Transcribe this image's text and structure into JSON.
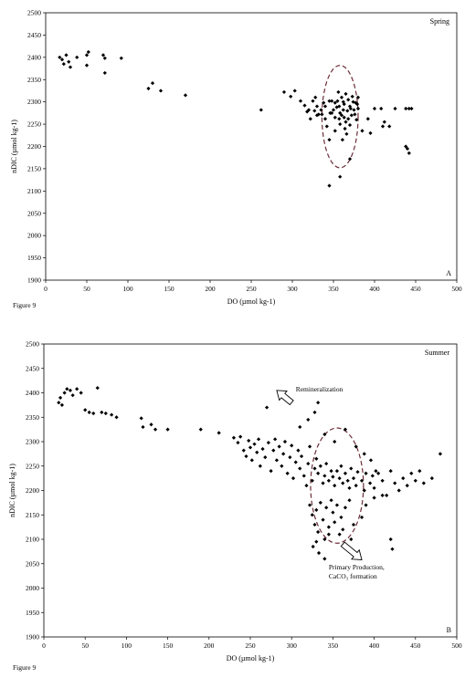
{
  "figure_label": "Figure 9",
  "chart_data": [
    {
      "type": "scatter",
      "panel_label": "A",
      "season_label": "Spring",
      "xlabel": "DO (µmol kg-1)",
      "ylabel": "nDIC (µmol kg-1)",
      "xlim": [
        0,
        500
      ],
      "ylim": [
        1900,
        2500
      ],
      "xticks": [
        "0",
        "50",
        "100",
        "150",
        "200",
        "250",
        "300",
        "350",
        "400",
        "450",
        "500"
      ],
      "yticks": [
        "1900",
        "1950",
        "2000",
        "2050",
        "2100",
        "2150",
        "2200",
        "2250",
        "2300",
        "2350",
        "2400",
        "2450",
        "2500"
      ],
      "grid": false,
      "marker": "diamond",
      "points": [
        [
          17,
          2400
        ],
        [
          20,
          2395
        ],
        [
          22,
          2385
        ],
        [
          25,
          2405
        ],
        [
          28,
          2390
        ],
        [
          30,
          2378
        ],
        [
          38,
          2400
        ],
        [
          50,
          2405
        ],
        [
          52,
          2412
        ],
        [
          50,
          2382
        ],
        [
          70,
          2405
        ],
        [
          72,
          2398
        ],
        [
          72,
          2365
        ],
        [
          92,
          2398
        ],
        [
          125,
          2330
        ],
        [
          130,
          2342
        ],
        [
          140,
          2325
        ],
        [
          170,
          2315
        ],
        [
          262,
          2282
        ],
        [
          290,
          2322
        ],
        [
          298,
          2312
        ],
        [
          303,
          2325
        ],
        [
          310,
          2302
        ],
        [
          315,
          2292
        ],
        [
          318,
          2278
        ],
        [
          320,
          2282
        ],
        [
          322,
          2262
        ],
        [
          325,
          2302
        ],
        [
          328,
          2310
        ],
        [
          330,
          2290
        ],
        [
          332,
          2272
        ],
        [
          335,
          2282
        ],
        [
          338,
          2298
        ],
        [
          340,
          2262
        ],
        [
          342,
          2245
        ],
        [
          345,
          2302
        ],
        [
          348,
          2275
        ],
        [
          350,
          2282
        ],
        [
          352,
          2265
        ],
        [
          355,
          2302
        ],
        [
          357,
          2290
        ],
        [
          358,
          2250
        ],
        [
          360,
          2270
        ],
        [
          360,
          2310
        ],
        [
          362,
          2282
        ],
        [
          363,
          2295
        ],
        [
          365,
          2255
        ],
        [
          365,
          2318
        ],
        [
          367,
          2280
        ],
        [
          368,
          2305
        ],
        [
          370,
          2290
        ],
        [
          372,
          2270
        ],
        [
          373,
          2312
        ],
        [
          375,
          2282
        ],
        [
          377,
          2298
        ],
        [
          378,
          2260
        ],
        [
          380,
          2285
        ],
        [
          380,
          2310
        ],
        [
          356,
          2322
        ],
        [
          364,
          2240
        ],
        [
          366,
          2228
        ],
        [
          361,
          2215
        ],
        [
          352,
          2235
        ],
        [
          345,
          2215
        ],
        [
          358,
          2275
        ],
        [
          354,
          2288
        ],
        [
          362,
          2300
        ],
        [
          368,
          2262
        ],
        [
          370,
          2248
        ],
        [
          374,
          2300
        ],
        [
          376,
          2272
        ],
        [
          340,
          2290
        ],
        [
          336,
          2272
        ],
        [
          330,
          2270
        ],
        [
          327,
          2280
        ],
        [
          348,
          2302
        ],
        [
          352,
          2298
        ],
        [
          346,
          2275
        ],
        [
          357,
          2262
        ],
        [
          363,
          2265
        ],
        [
          371,
          2285
        ],
        [
          379,
          2295
        ],
        [
          345,
          2112
        ],
        [
          358,
          2132
        ],
        [
          370,
          2172
        ],
        [
          385,
          2235
        ],
        [
          392,
          2262
        ],
        [
          400,
          2285
        ],
        [
          408,
          2285
        ],
        [
          412,
          2255
        ],
        [
          418,
          2245
        ],
        [
          425,
          2285
        ],
        [
          395,
          2230
        ],
        [
          410,
          2245
        ],
        [
          438,
          2200
        ],
        [
          440,
          2195
        ],
        [
          442,
          2185
        ],
        [
          438,
          2285
        ],
        [
          442,
          2285
        ],
        [
          445,
          2285
        ]
      ],
      "annotations": [
        {
          "shape": "ellipse",
          "center": [
            358,
            2267
          ],
          "rx": 22,
          "ry": 115,
          "style": "dashed"
        }
      ]
    },
    {
      "type": "scatter",
      "panel_label": "B",
      "season_label": "Summer",
      "xlabel": "DO (µmol kg-1)",
      "ylabel": "nDIC (µmol kg-1)",
      "xlim": [
        0,
        500
      ],
      "ylim": [
        1900,
        2500
      ],
      "xticks": [
        "0",
        "50",
        "100",
        "150",
        "200",
        "250",
        "300",
        "350",
        "400",
        "450",
        "500"
      ],
      "yticks": [
        "1900",
        "1950",
        "2000",
        "2050",
        "2100",
        "2150",
        "2200",
        "2250",
        "2300",
        "2350",
        "2400",
        "2450",
        "2500"
      ],
      "grid": false,
      "marker": "diamond",
      "text_annotations": {
        "remineralization": "Remineralization",
        "primary_production_line1": "Primary Production,",
        "primary_production_line2": "CaCO₃ formation"
      },
      "points": [
        [
          18,
          2380
        ],
        [
          20,
          2390
        ],
        [
          22,
          2375
        ],
        [
          25,
          2400
        ],
        [
          28,
          2408
        ],
        [
          32,
          2405
        ],
        [
          35,
          2395
        ],
        [
          40,
          2408
        ],
        [
          45,
          2400
        ],
        [
          50,
          2365
        ],
        [
          55,
          2360
        ],
        [
          60,
          2358
        ],
        [
          65,
          2410
        ],
        [
          70,
          2360
        ],
        [
          75,
          2358
        ],
        [
          82,
          2355
        ],
        [
          88,
          2350
        ],
        [
          118,
          2348
        ],
        [
          120,
          2330
        ],
        [
          130,
          2335
        ],
        [
          135,
          2325
        ],
        [
          150,
          2325
        ],
        [
          190,
          2325
        ],
        [
          212,
          2318
        ],
        [
          230,
          2308
        ],
        [
          235,
          2298
        ],
        [
          238,
          2310
        ],
        [
          242,
          2282
        ],
        [
          245,
          2270
        ],
        [
          248,
          2302
        ],
        [
          250,
          2288
        ],
        [
          252,
          2262
        ],
        [
          255,
          2295
        ],
        [
          258,
          2278
        ],
        [
          260,
          2305
        ],
        [
          262,
          2250
        ],
        [
          265,
          2285
        ],
        [
          268,
          2268
        ],
        [
          270,
          2370
        ],
        [
          272,
          2298
        ],
        [
          275,
          2240
        ],
        [
          278,
          2282
        ],
        [
          280,
          2305
        ],
        [
          282,
          2262
        ],
        [
          285,
          2290
        ],
        [
          288,
          2250
        ],
        [
          290,
          2275
        ],
        [
          292,
          2300
        ],
        [
          295,
          2235
        ],
        [
          298,
          2268
        ],
        [
          300,
          2292
        ],
        [
          302,
          2225
        ],
        [
          305,
          2258
        ],
        [
          308,
          2282
        ],
        [
          310,
          2245
        ],
        [
          312,
          2270
        ],
        [
          315,
          2230
        ],
        [
          318,
          2210
        ],
        [
          320,
          2255
        ],
        [
          322,
          2290
        ],
        [
          325,
          2220
        ],
        [
          328,
          2245
        ],
        [
          330,
          2265
        ],
        [
          332,
          2235
        ],
        [
          335,
          2250
        ],
        [
          338,
          2215
        ],
        [
          340,
          2230
        ],
        [
          342,
          2255
        ],
        [
          345,
          2220
        ],
        [
          348,
          2240
        ],
        [
          350,
          2228
        ],
        [
          352,
          2210
        ],
        [
          355,
          2240
        ],
        [
          358,
          2225
        ],
        [
          360,
          2250
        ],
        [
          362,
          2215
        ],
        [
          365,
          2235
        ],
        [
          368,
          2220
        ],
        [
          370,
          2205
        ],
        [
          372,
          2245
        ],
        [
          375,
          2225
        ],
        [
          378,
          2210
        ],
        [
          380,
          2238
        ],
        [
          385,
          2220
        ],
        [
          388,
          2200
        ],
        [
          390,
          2235
        ],
        [
          395,
          2215
        ],
        [
          398,
          2230
        ],
        [
          400,
          2205
        ],
        [
          405,
          2235
        ],
        [
          410,
          2220
        ],
        [
          415,
          2190
        ],
        [
          420,
          2240
        ],
        [
          425,
          2215
        ],
        [
          430,
          2200
        ],
        [
          435,
          2225
        ],
        [
          440,
          2210
        ],
        [
          445,
          2235
        ],
        [
          450,
          2220
        ],
        [
          455,
          2240
        ],
        [
          460,
          2215
        ],
        [
          470,
          2225
        ],
        [
          480,
          2275
        ],
        [
          322,
          2170
        ],
        [
          325,
          2150
        ],
        [
          328,
          2130
        ],
        [
          330,
          2160
        ],
        [
          332,
          2115
        ],
        [
          335,
          2175
        ],
        [
          338,
          2140
        ],
        [
          340,
          2100
        ],
        [
          342,
          2165
        ],
        [
          345,
          2125
        ],
        [
          348,
          2180
        ],
        [
          350,
          2155
        ],
        [
          352,
          2135
        ],
        [
          355,
          2170
        ],
        [
          358,
          2110
        ],
        [
          360,
          2145
        ],
        [
          365,
          2165
        ],
        [
          370,
          2180
        ],
        [
          375,
          2130
        ],
        [
          330,
          2095
        ],
        [
          333,
          2072
        ],
        [
          326,
          2085
        ],
        [
          340,
          2060
        ],
        [
          345,
          2110
        ],
        [
          362,
          2120
        ],
        [
          372,
          2100
        ],
        [
          385,
          2145
        ],
        [
          390,
          2170
        ],
        [
          400,
          2185
        ],
        [
          410,
          2190
        ],
        [
          420,
          2100
        ],
        [
          422,
          2080
        ],
        [
          310,
          2330
        ],
        [
          320,
          2345
        ],
        [
          328,
          2360
        ],
        [
          332,
          2380
        ],
        [
          340,
          2315
        ],
        [
          352,
          2300
        ],
        [
          365,
          2325
        ],
        [
          378,
          2290
        ],
        [
          388,
          2275
        ],
        [
          396,
          2262
        ],
        [
          402,
          2240
        ]
      ],
      "annotations": [
        {
          "shape": "ellipse",
          "center": [
            355,
            2210
          ],
          "rx": 32,
          "ry": 118,
          "style": "dashed"
        }
      ]
    }
  ]
}
